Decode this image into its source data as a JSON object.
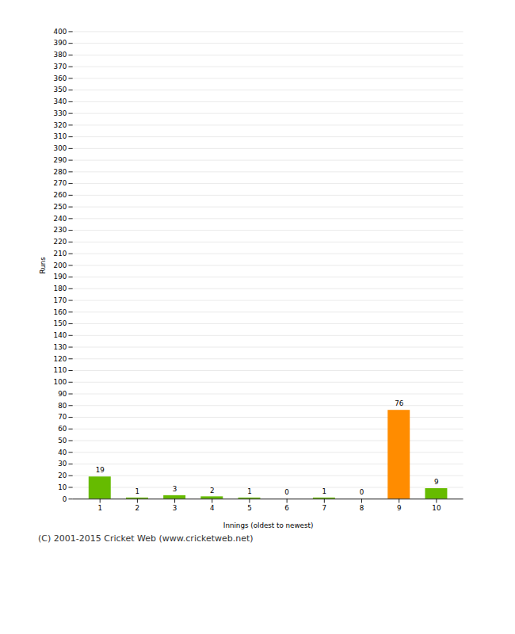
{
  "chart_data": {
    "type": "bar",
    "categories": [
      "1",
      "2",
      "3",
      "4",
      "5",
      "6",
      "7",
      "8",
      "9",
      "10"
    ],
    "values": [
      19,
      1,
      3,
      2,
      1,
      0,
      1,
      0,
      76,
      9
    ],
    "colors": [
      "#66bb00",
      "#66bb00",
      "#66bb00",
      "#66bb00",
      "#66bb00",
      "#66bb00",
      "#66bb00",
      "#66bb00",
      "#ff8c00",
      "#66bb00"
    ],
    "xlabel": "Innings (oldest to newest)",
    "ylabel": "Runs",
    "ylim": [
      0,
      400
    ],
    "yticks": [
      0,
      10,
      20,
      30,
      40,
      50,
      60,
      70,
      80,
      90,
      100,
      110,
      120,
      130,
      140,
      150,
      160,
      170,
      180,
      190,
      200,
      210,
      220,
      230,
      240,
      250,
      260,
      270,
      280,
      290,
      300,
      310,
      320,
      330,
      340,
      350,
      360,
      370,
      380,
      390,
      400
    ],
    "grid": true,
    "data_labels": true,
    "caption": "(C) 2001-2015 Cricket Web (www.cricketweb.net)"
  }
}
